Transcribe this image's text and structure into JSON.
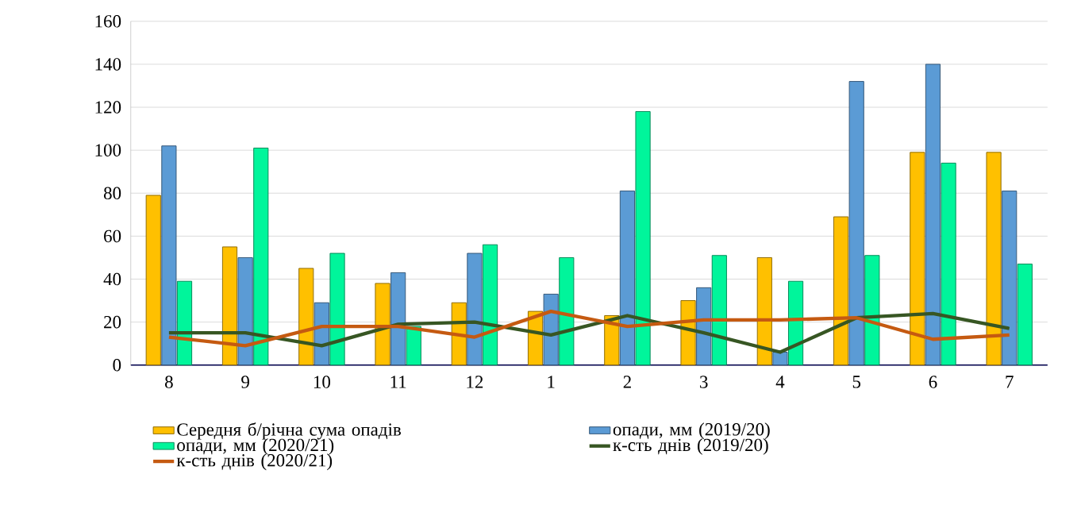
{
  "chart_data": {
    "type": "bar",
    "categories": [
      "8",
      "9",
      "10",
      "11",
      "12",
      "1",
      "2",
      "3",
      "4",
      "5",
      "6",
      "7"
    ],
    "series": [
      {
        "name": "Середня б/річна сума опадів",
        "color": "#ffc000",
        "values": [
          79,
          55,
          45,
          38,
          29,
          25,
          23,
          30,
          50,
          69,
          99,
          99
        ]
      },
      {
        "name": "опади, мм (2019/20)",
        "color": "#5b9bd5",
        "values": [
          102,
          50,
          29,
          43,
          52,
          33,
          81,
          36,
          6,
          132,
          140,
          81
        ]
      },
      {
        "name": "опади, мм (2020/21)",
        "color": "#00f59b",
        "values": [
          39,
          101,
          52,
          18,
          56,
          50,
          118,
          51,
          39,
          51,
          94,
          47
        ]
      },
      {
        "name": "к-сть днів (2019/20)",
        "type": "line",
        "color": "#375623",
        "values": [
          15,
          15,
          9,
          19,
          20,
          14,
          23,
          15,
          6,
          22,
          24,
          17
        ]
      },
      {
        "name": "к-сть днів (2020/21)",
        "type": "line",
        "color": "#c55a11",
        "values": [
          13,
          9,
          18,
          18,
          13,
          25,
          18,
          21,
          21,
          22,
          12,
          14
        ]
      }
    ],
    "ylim": [
      0,
      160
    ],
    "yticks": [
      0,
      20,
      40,
      60,
      80,
      100,
      120,
      140,
      160
    ],
    "grid": "y",
    "legend": "bottom"
  }
}
